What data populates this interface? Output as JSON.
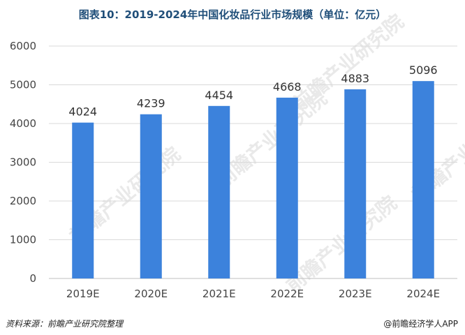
{
  "chart_title": "图表10：2019-2024年中国化妆品行业市场规模（单位：亿元）",
  "source_text": "资料来源：前瞻产业研究院整理",
  "brand_text": "@前瞻经济学人APP",
  "watermark_text": "前瞻产业研究院",
  "colors": {
    "bar": "#3c82dc",
    "grid": "#d9d9d9",
    "axis": "#bfbfbf"
  },
  "chart_data": {
    "type": "bar",
    "title": "图表10：2019-2024年中国化妆品行业市场规模（单位：亿元）",
    "categories": [
      "2019E",
      "2020E",
      "2021E",
      "2022E",
      "2023E",
      "2024E"
    ],
    "values": [
      4024,
      4239,
      4454,
      4668,
      4883,
      5096
    ],
    "data_labels": [
      "4024",
      "4239",
      "4454",
      "4668",
      "4883",
      "5096"
    ],
    "y_ticks": [
      0,
      1000,
      2000,
      3000,
      4000,
      5000,
      6000
    ],
    "ylim": [
      0,
      6000
    ],
    "grid": true,
    "legend": "none"
  }
}
